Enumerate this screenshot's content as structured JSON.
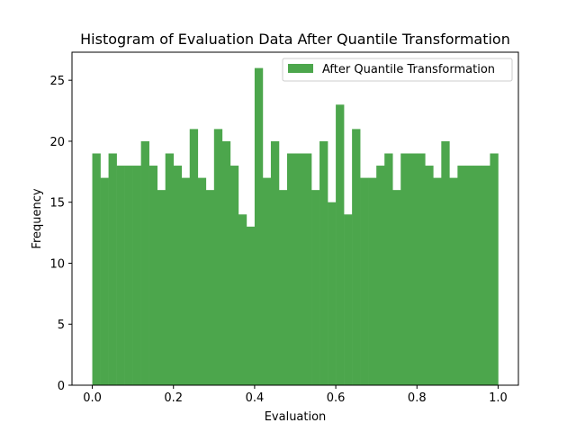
{
  "chart_data": {
    "type": "bar",
    "title": "Histogram of Evaluation Data After Quantile Transformation",
    "xlabel": "Evaluation",
    "ylabel": "Frequency",
    "xlim": [
      -0.05,
      1.05
    ],
    "ylim": [
      0,
      27.3
    ],
    "x_ticks": [
      0.0,
      0.2,
      0.4,
      0.6,
      0.8,
      1.0
    ],
    "x_tick_labels": [
      "0.0",
      "0.2",
      "0.4",
      "0.6",
      "0.8",
      "1.0"
    ],
    "y_ticks": [
      0,
      5,
      10,
      15,
      20,
      25
    ],
    "y_tick_labels": [
      "0",
      "5",
      "10",
      "15",
      "20",
      "25"
    ],
    "bin_range": [
      0.0,
      1.0
    ],
    "bins": 50,
    "series": [
      {
        "name": "After Quantile Transformation",
        "color": "#4ca64c",
        "values": [
          19,
          17,
          19,
          18,
          18,
          18,
          20,
          18,
          16,
          19,
          18,
          17,
          21,
          17,
          16,
          21,
          20,
          18,
          14,
          13,
          26,
          17,
          20,
          16,
          19,
          19,
          19,
          16,
          20,
          15,
          23,
          14,
          21,
          17,
          17,
          18,
          19,
          16,
          19,
          19,
          19,
          18,
          17,
          20,
          17,
          18,
          18,
          18,
          18,
          19
        ]
      }
    ],
    "legend_position": "top-right",
    "grid": false
  }
}
